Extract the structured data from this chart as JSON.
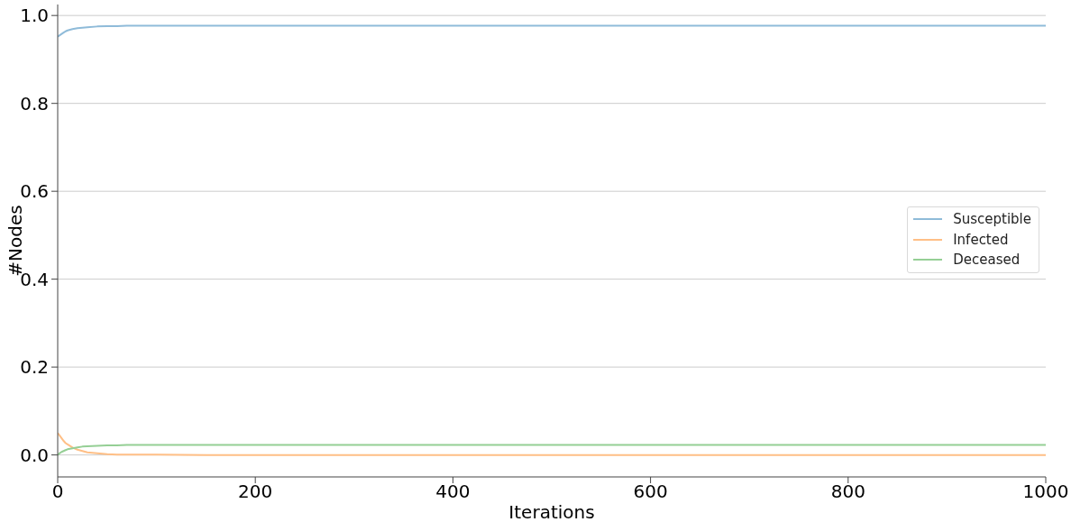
{
  "chart_data": {
    "type": "line",
    "xlabel": "Iterations",
    "ylabel": "#Nodes",
    "x": [
      0,
      2,
      4,
      6,
      8,
      10,
      15,
      20,
      25,
      30,
      40,
      50,
      60,
      70,
      80,
      100,
      150,
      200,
      300,
      400,
      500,
      600,
      700,
      800,
      900,
      1000
    ],
    "series": [
      {
        "name": "Susceptible",
        "color": "#8fbbd9",
        "values": [
          0.952,
          0.955,
          0.958,
          0.961,
          0.964,
          0.966,
          0.969,
          0.971,
          0.972,
          0.973,
          0.975,
          0.976,
          0.976,
          0.977,
          0.977,
          0.977,
          0.977,
          0.977,
          0.977,
          0.977,
          0.977,
          0.977,
          0.977,
          0.977,
          0.977,
          0.977
        ]
      },
      {
        "name": "Infected",
        "color": "#ffbf86",
        "values": [
          0.05,
          0.044,
          0.038,
          0.032,
          0.027,
          0.024,
          0.017,
          0.012,
          0.009,
          0.006,
          0.004,
          0.002,
          0.001,
          0.001,
          0.001,
          0.001,
          0,
          0,
          0,
          0,
          0,
          0,
          0,
          0,
          0,
          0
        ]
      },
      {
        "name": "Deceased",
        "color": "#95cf95",
        "values": [
          0,
          0.004,
          0.007,
          0.009,
          0.011,
          0.013,
          0.015,
          0.017,
          0.019,
          0.02,
          0.021,
          0.022,
          0.022,
          0.023,
          0.023,
          0.023,
          0.023,
          0.023,
          0.023,
          0.023,
          0.023,
          0.023,
          0.023,
          0.023,
          0.023,
          0.023
        ]
      }
    ],
    "xlim": [
      0,
      1000
    ],
    "xticks": [
      0,
      200,
      400,
      600,
      800,
      1000
    ],
    "ylim": [
      -0.05,
      1.025
    ],
    "yticks": [
      {
        "value": 0,
        "label": "0.0"
      },
      0.2,
      0.4,
      0.6,
      0.8,
      {
        "value": 1,
        "label": "1.0"
      }
    ],
    "grid": "y",
    "legend": "right"
  }
}
